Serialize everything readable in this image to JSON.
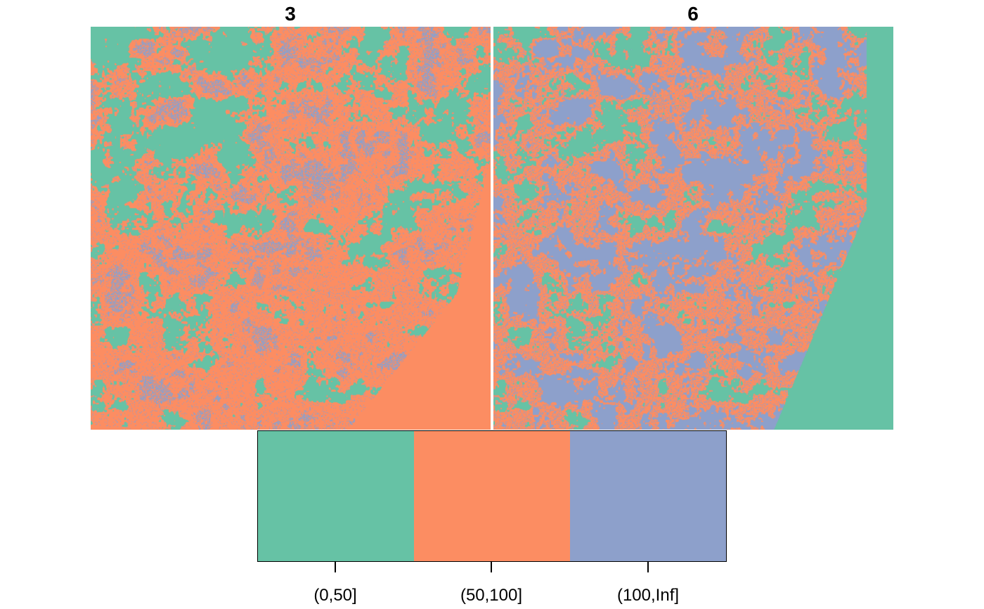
{
  "panels": [
    {
      "title": "3"
    },
    {
      "title": "6"
    }
  ],
  "legend": {
    "classes": [
      {
        "label": "(0,50]",
        "color": "#66c2a5"
      },
      {
        "label": "(50,100]",
        "color": "#fc8d62"
      },
      {
        "label": "(100,Inf]",
        "color": "#8da0cb"
      }
    ]
  }
}
